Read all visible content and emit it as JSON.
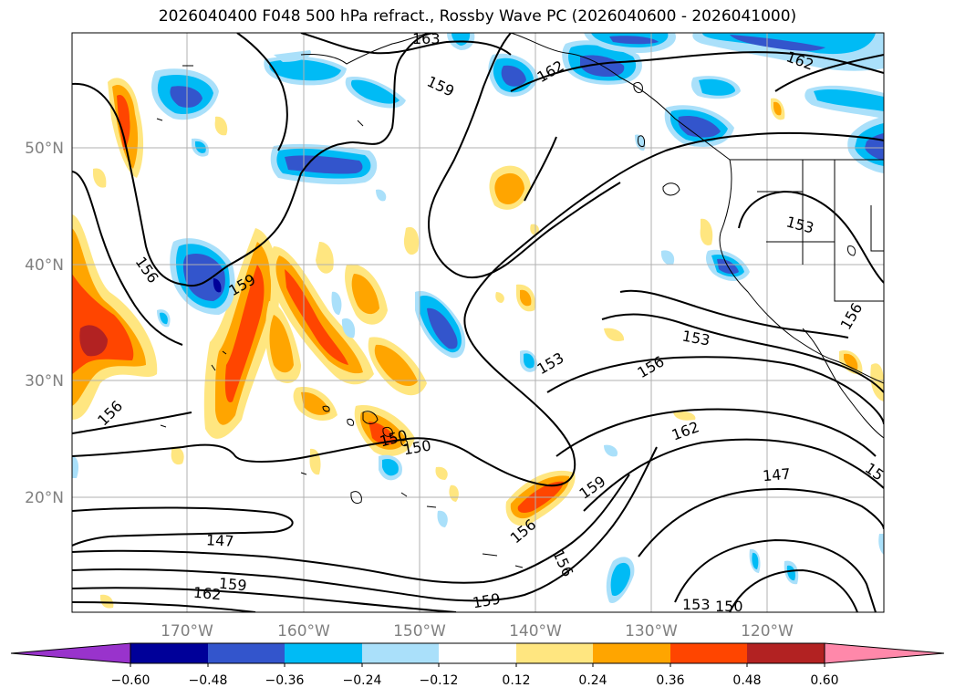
{
  "title": "2026040400 F048 500 hPa refract., Rossby Wave PC (2026040600 - 2026041000)",
  "lat_labels": [
    "50°N",
    "40°N",
    "30°N",
    "20°N"
  ],
  "lon_labels": [
    "170°W",
    "160°W",
    "150°W",
    "140°W",
    "130°W",
    "120°W"
  ],
  "contour_labels": [
    "163",
    "162",
    "162",
    "159",
    "159",
    "156",
    "156",
    "153",
    "153",
    "156",
    "162",
    "153",
    "150",
    "150",
    "159",
    "156",
    "147",
    "147",
    "159",
    "162",
    "159",
    "156",
    "153",
    "150",
    "156",
    "15"
  ],
  "colorbar": {
    "ticks": [
      "−0.60",
      "−0.48",
      "−0.36",
      "−0.24",
      "−0.12",
      "0.12",
      "0.24",
      "0.36",
      "0.48",
      "0.60"
    ],
    "colors": [
      "#9933cc",
      "#000099",
      "#3355cc",
      "#00bbf5",
      "#aae0fa",
      "#ffffff",
      "#ffe680",
      "#ffa500",
      "#ff4500",
      "#b22222",
      "#ff88aa"
    ]
  },
  "colors": {
    "land_line": "#000000",
    "grid": "#b0b0b0",
    "contour": "#000000"
  }
}
